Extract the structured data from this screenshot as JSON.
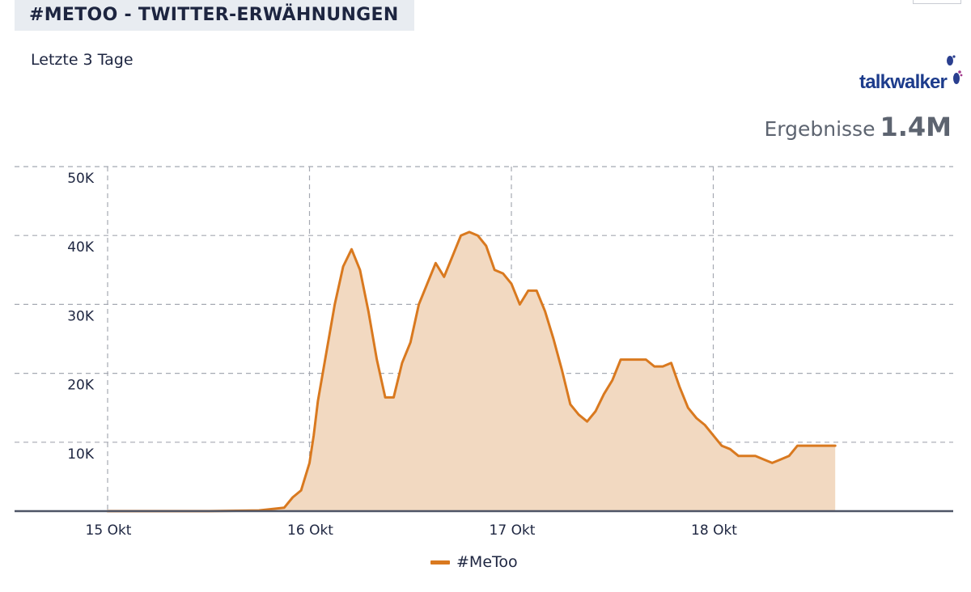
{
  "header": {
    "title": "#METOO - TWITTER-ERWÄHNUNGEN",
    "subtitle": "Letzte 3 Tage"
  },
  "logo": {
    "text": "talkwalker",
    "icon": "footprints-icon"
  },
  "results": {
    "label": "Ergebnisse",
    "value": "1.4M"
  },
  "colors": {
    "line": "#d9791f",
    "fill": "#f2d9c1",
    "grid": "#a5a9b2",
    "axis": "#4e5566",
    "logo": "#1d3c8c"
  },
  "chart_data": {
    "type": "area",
    "ylim": [
      0,
      50000
    ],
    "yticks": [
      10000,
      20000,
      30000,
      40000,
      50000
    ],
    "ytick_labels": [
      "10K",
      "20K",
      "30K",
      "40K",
      "50K"
    ],
    "xticks": [
      0,
      24,
      48,
      72
    ],
    "xtick_labels": [
      "15 Okt",
      "16 Okt",
      "17 Okt",
      "18 Okt"
    ],
    "xlim": [
      -11,
      100
    ],
    "grid": true,
    "legend_position": "bottom",
    "series": [
      {
        "name": "#MeToo",
        "x": [
          0,
          12,
          18,
          21,
          22,
          23,
          24,
          24.5,
          25,
          26,
          27,
          28,
          29,
          30,
          31,
          32,
          33,
          34,
          35,
          36,
          37,
          38,
          39,
          40,
          41,
          42,
          43,
          44,
          45,
          46,
          47,
          48,
          49,
          50,
          51,
          52,
          53,
          54,
          55,
          56,
          57,
          58,
          59,
          60,
          61,
          62,
          63,
          64,
          65,
          66,
          67,
          68,
          69,
          70,
          71,
          72,
          73,
          74,
          75,
          76,
          77,
          78,
          79,
          80,
          81,
          82,
          83,
          84,
          85,
          86,
          86.5
        ],
        "y": [
          0,
          0,
          100,
          500,
          2000,
          3000,
          7000,
          11000,
          16000,
          23000,
          30000,
          35500,
          38000,
          35000,
          29000,
          22000,
          16500,
          16500,
          21500,
          24500,
          30000,
          33000,
          36000,
          34000,
          37000,
          40000,
          40500,
          40000,
          38500,
          35000,
          34500,
          33000,
          30000,
          32000,
          32000,
          29000,
          25000,
          20500,
          15500,
          14000,
          13000,
          14500,
          17000,
          19000,
          22000,
          22000,
          22000,
          22000,
          21000,
          21000,
          21500,
          18000,
          15000,
          13500,
          12500,
          11000,
          9500,
          9000,
          8000,
          8000,
          8000,
          7500,
          7000,
          7500,
          8000,
          9500,
          9500,
          9500,
          9500,
          9500,
          9500
        ]
      }
    ]
  },
  "legend": {
    "label": "#MeToo"
  }
}
